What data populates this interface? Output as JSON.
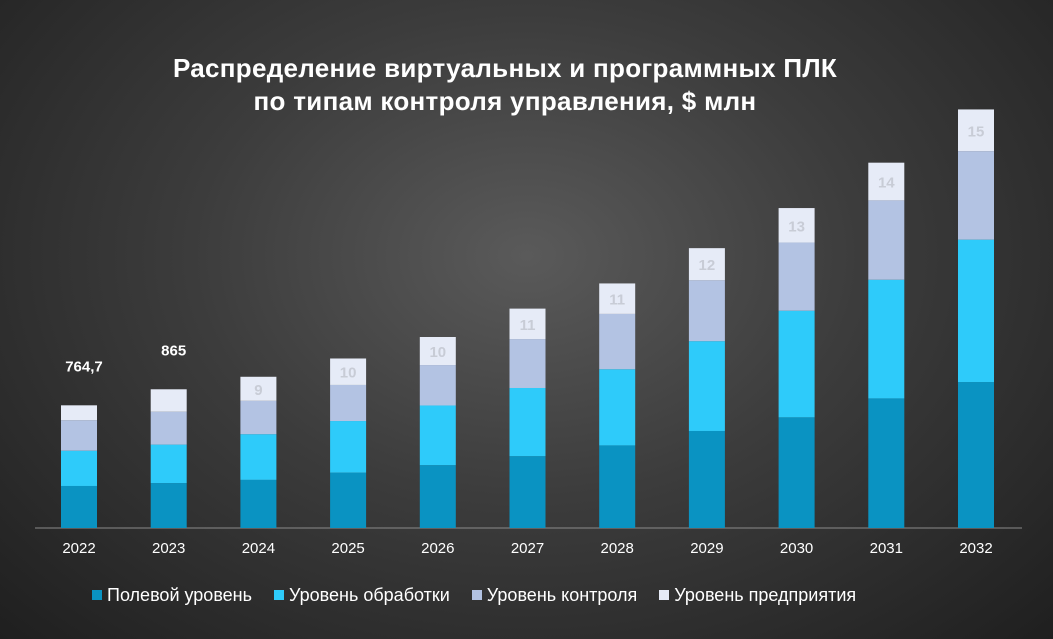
{
  "chart_data": {
    "type": "bar",
    "stacked": true,
    "title": "Распределение виртуальных и программных ПЛК по типам контроля управления, $ млн",
    "title_lines": [
      "Распределение виртуальных и программных ПЛК",
      "по типам контроля управления, $ млн"
    ],
    "categories": [
      "2022",
      "2023",
      "2024",
      "2025",
      "2026",
      "2027",
      "2028",
      "2029",
      "2030",
      "2031",
      "2032"
    ],
    "series": [
      {
        "name": "Полевой уровень",
        "color": "#0a93c2",
        "values": [
          262,
          280,
          300,
          345,
          392,
          448,
          515,
          605,
          690,
          808,
          910
        ]
      },
      {
        "name": "Уровень обработки",
        "color": "#2ecbfa",
        "values": [
          220,
          240,
          285,
          322,
          372,
          425,
          475,
          560,
          665,
          740,
          888
        ]
      },
      {
        "name": "Уровень контроля",
        "color": "#b3c3e3",
        "values": [
          190,
          205,
          208,
          225,
          252,
          305,
          345,
          380,
          425,
          495,
          552
        ]
      },
      {
        "name": "Уровень предприятия",
        "color": "#e6ebf7",
        "values": [
          93,
          140,
          150,
          165,
          175,
          190,
          190,
          200,
          215,
          235,
          260
        ]
      }
    ],
    "total_labels": [
      "764,7",
      "865",
      "",
      "",
      "",
      "",
      "",
      "",
      "",
      "",
      ""
    ],
    "top_segment_labels": [
      "",
      "",
      "9",
      "10",
      "10",
      "11",
      "11",
      "12",
      "13",
      "14",
      "15"
    ],
    "ylim": [
      0,
      2700
    ],
    "grid": false,
    "legend_position": "bottom"
  }
}
